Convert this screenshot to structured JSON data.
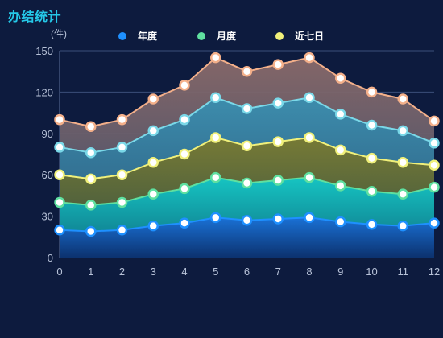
{
  "panel": {
    "title": "办结统计"
  },
  "chart_data": {
    "type": "area",
    "title": "办结统计",
    "ylabel": "(件)",
    "xlabel": "",
    "x": [
      0,
      1,
      2,
      3,
      4,
      5,
      6,
      7,
      8,
      9,
      10,
      11,
      12
    ],
    "ylim": [
      0,
      150
    ],
    "yticks": [
      0,
      30,
      60,
      90,
      120,
      150
    ],
    "grid": "horizontal",
    "legend_position": "top-center",
    "stacked": false,
    "series": [
      {
        "name": "年度",
        "color": "#1e90ff",
        "values": [
          20,
          19,
          20,
          23,
          25,
          29,
          27,
          28,
          29,
          26,
          24,
          23,
          25
        ]
      },
      {
        "name": "月度",
        "color": "#5fe0a0",
        "values": [
          40,
          38,
          40,
          46,
          50,
          58,
          54,
          56,
          58,
          52,
          48,
          46,
          51
        ]
      },
      {
        "name": "近七日",
        "color": "#f0f07a",
        "values": [
          60,
          57,
          60,
          69,
          75,
          87,
          81,
          84,
          87,
          78,
          72,
          69,
          67
        ]
      },
      {
        "name": "",
        "color": "#7ad8e8",
        "values": [
          80,
          76,
          80,
          92,
          100,
          116,
          108,
          112,
          116,
          104,
          96,
          92,
          83
        ]
      },
      {
        "name": "",
        "color": "#f4b08a",
        "values": [
          100,
          95,
          100,
          115,
          125,
          145,
          135,
          140,
          145,
          130,
          120,
          115,
          99
        ]
      }
    ]
  }
}
